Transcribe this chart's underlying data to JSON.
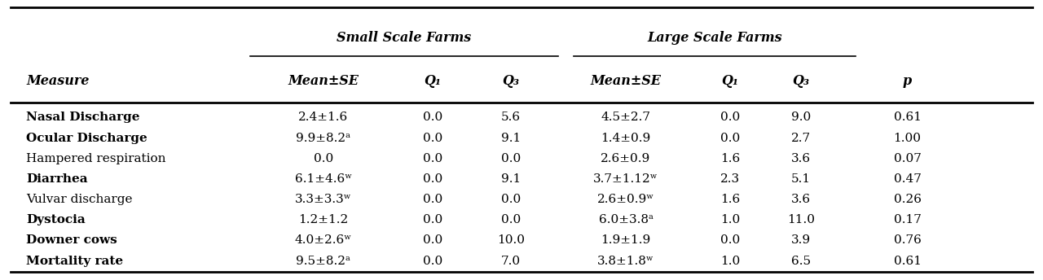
{
  "header1_small": "Small Scale Farms",
  "header1_large": "Large Scale Farms",
  "header2": [
    "Measure",
    "Mean±SE",
    "Q₁",
    "Q₃",
    "Mean±SE",
    "Q₁",
    "Q₃",
    "p"
  ],
  "rows": [
    [
      "Nasal Discharge",
      "2.4±1.6",
      "0.0",
      "5.6",
      "4.5±2.7",
      "0.0",
      "9.0",
      "0.61"
    ],
    [
      "Ocular Discharge",
      "9.9±8.2ᵃ",
      "0.0",
      "9.1",
      "1.4±0.9",
      "0.0",
      "2.7",
      "1.00"
    ],
    [
      "Hampered respiration",
      "0.0",
      "0.0",
      "0.0",
      "2.6±0.9",
      "1.6",
      "3.6",
      "0.07"
    ],
    [
      "Diarrhea",
      "6.1±4.6ʷ",
      "0.0",
      "9.1",
      "3.7±1.12ʷ",
      "2.3",
      "5.1",
      "0.47"
    ],
    [
      "Vulvar discharge",
      "3.3±3.3ʷ",
      "0.0",
      "0.0",
      "2.6±0.9ʷ",
      "1.6",
      "3.6",
      "0.26"
    ],
    [
      "Dystocia",
      "1.2±1.2",
      "0.0",
      "0.0",
      "6.0±3.8ᵃ",
      "1.0",
      "11.0",
      "0.17"
    ],
    [
      "Downer cows",
      "4.0±2.6ʷ",
      "0.0",
      "10.0",
      "1.9±1.9",
      "0.0",
      "3.9",
      "0.76"
    ],
    [
      "Mortality rate",
      "9.5±8.2ᵃ",
      "0.0",
      "7.0",
      "3.8±1.8ʷ",
      "1.0",
      "6.5",
      "0.61"
    ]
  ],
  "bold_measures": [
    true,
    true,
    false,
    true,
    false,
    true,
    true,
    true
  ],
  "bg_color": "#ffffff"
}
